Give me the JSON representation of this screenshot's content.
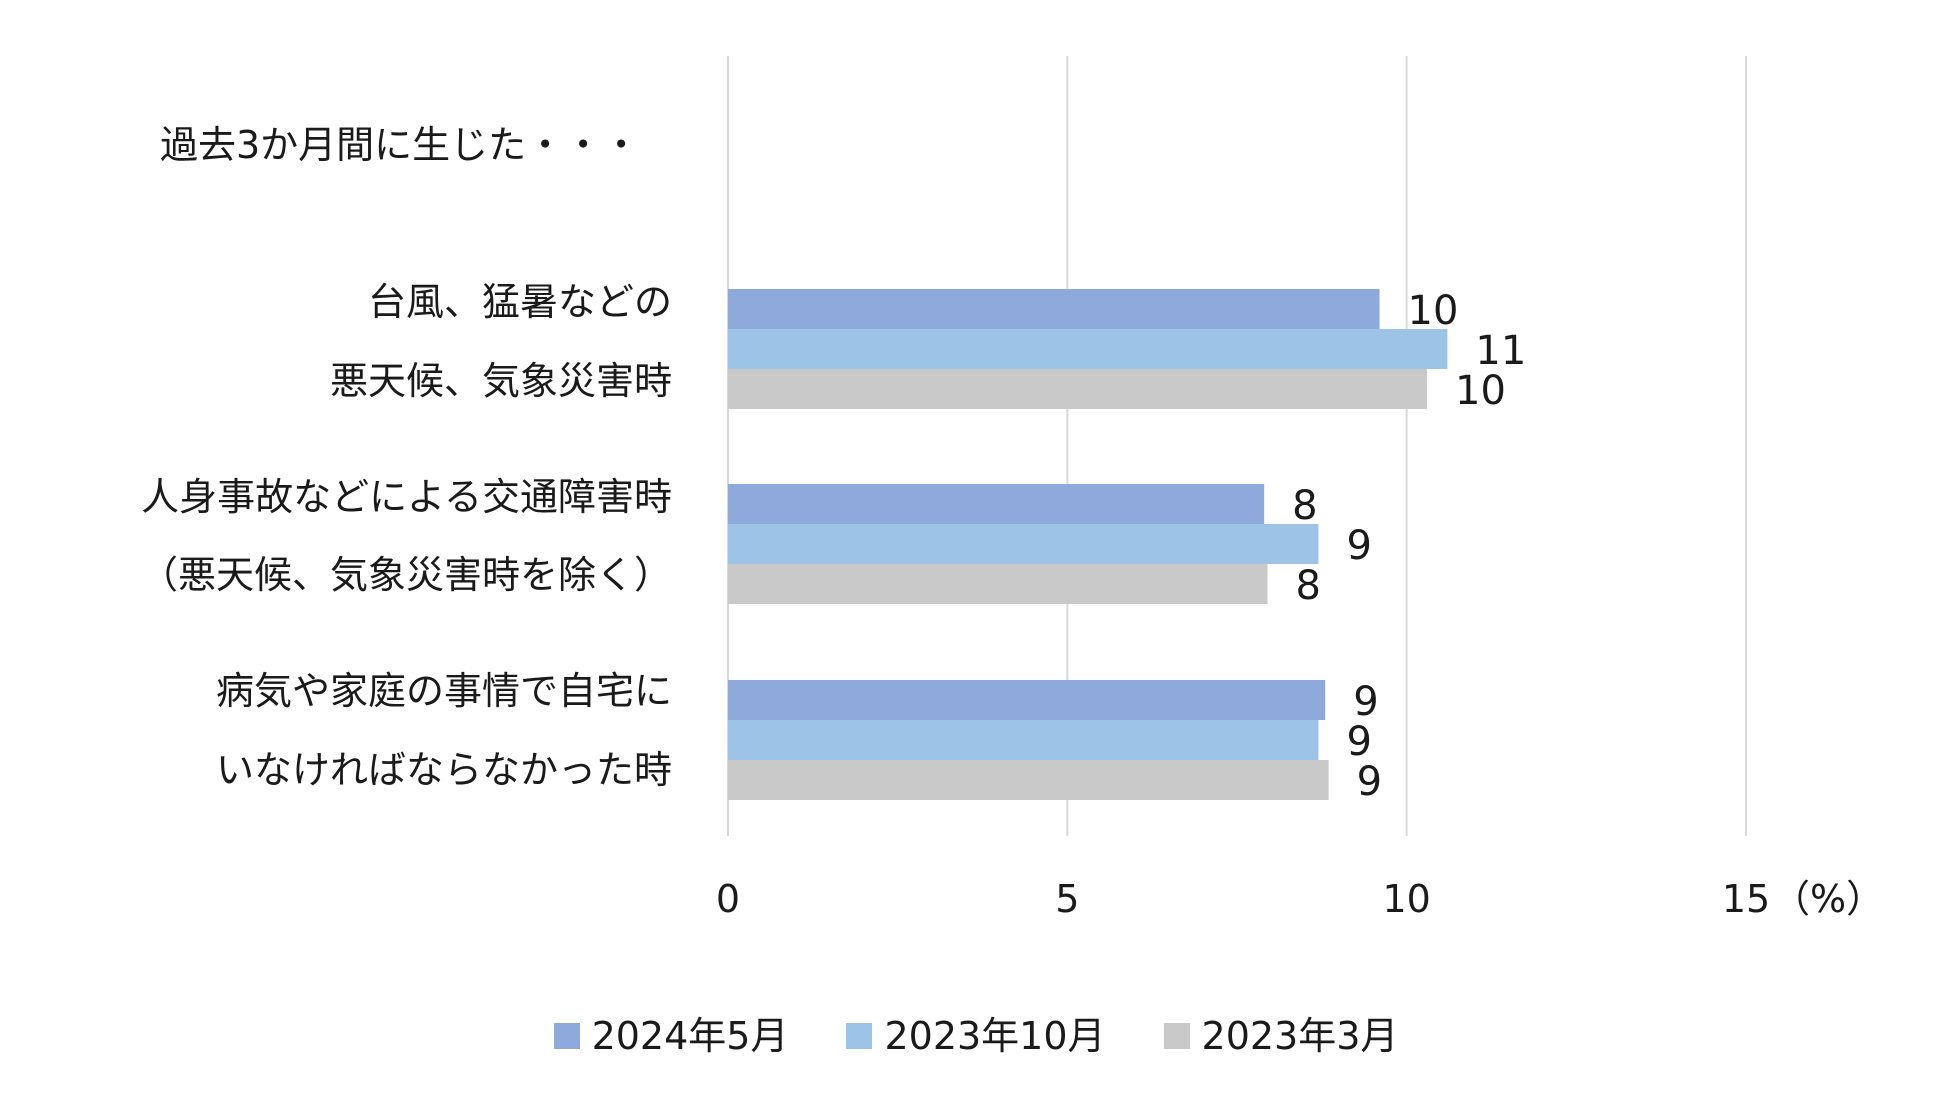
{
  "chart_data": {
    "type": "bar",
    "orientation": "horizontal",
    "header_note": "過去3か月間に生じた・・・",
    "categories": [
      [
        "台風、猛暑などの",
        "悪天候、気象災害時"
      ],
      [
        "人身事故などによる交通障害時",
        "（悪天候、気象災害時を除く）"
      ],
      [
        "病気や家庭の事情で自宅に",
        "いなければならなかった時"
      ]
    ],
    "series": [
      {
        "name": "2024年5月",
        "values": [
          9.6,
          7.9,
          8.8
        ],
        "labels": [
          "10",
          "8",
          "9"
        ],
        "color": "#8EAADC"
      },
      {
        "name": "2023年10月",
        "values": [
          10.6,
          8.7,
          8.7
        ],
        "labels": [
          "11",
          "9",
          "9"
        ],
        "color": "#9DC3E6"
      },
      {
        "name": "2023年3月",
        "values": [
          10.3,
          7.95,
          8.85
        ],
        "labels": [
          "10",
          "8",
          "9"
        ],
        "color": "#C9C9C9"
      }
    ],
    "xlim": [
      0,
      15
    ],
    "xticks": [
      "0",
      "5",
      "10",
      "15"
    ],
    "xunit": "（%）",
    "grid": "vertical",
    "legend_position": "bottom"
  }
}
